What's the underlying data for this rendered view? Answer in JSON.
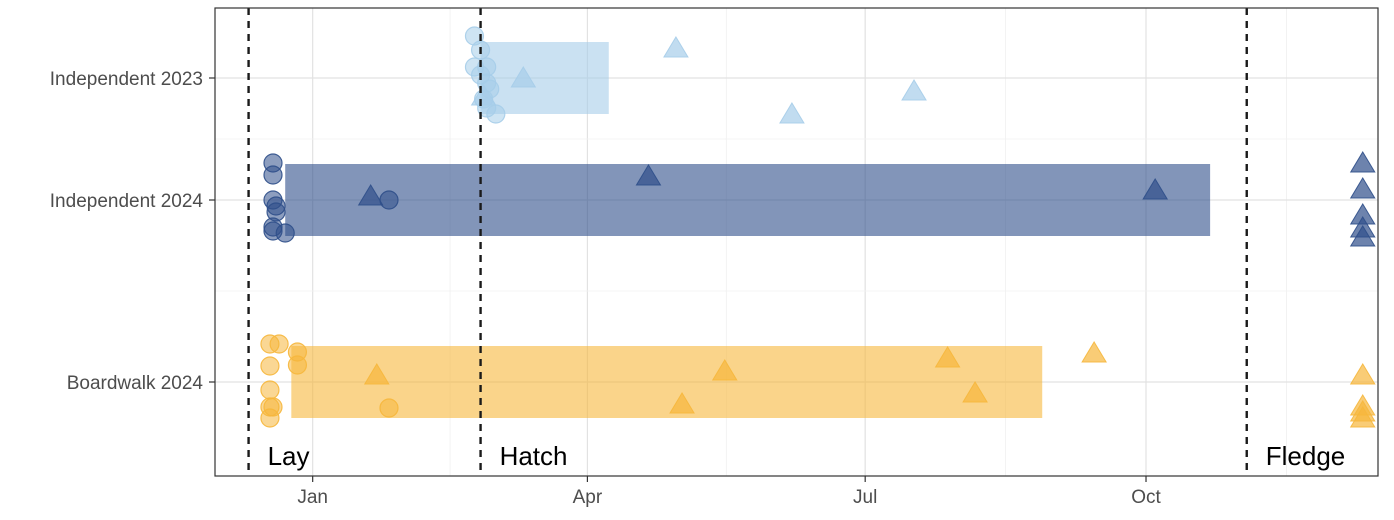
{
  "chart_data": {
    "type": "scatter",
    "title": "",
    "xlabel": "",
    "ylabel": "",
    "x_ticks": [
      {
        "label": "Jan",
        "x": 31
      },
      {
        "label": "Apr",
        "x": 121
      },
      {
        "label": "Jul",
        "x": 212
      },
      {
        "label": "Oct",
        "x": 304
      }
    ],
    "x_range": [
      -1,
      380
    ],
    "groups": [
      "Independent 2023",
      "Independent 2024",
      "Boardwalk 2024"
    ],
    "group_colors": {
      "Independent 2023": "#a6cde9",
      "Independent 2024": "#2f4f8a",
      "Boardwalk 2024": "#f6b73c"
    },
    "events": [
      {
        "label": "Lay",
        "x": 10
      },
      {
        "label": "Hatch",
        "x": 86
      },
      {
        "label": "Fledge",
        "x": 337
      }
    ],
    "ranges": [
      {
        "group": "Independent 2023",
        "start": 86,
        "end": 128
      },
      {
        "group": "Independent 2024",
        "start": 22,
        "end": 325
      },
      {
        "group": "Boardwalk 2024",
        "start": 24,
        "end": 270
      }
    ],
    "points": [
      {
        "group": "Independent 2023",
        "shape": "circle",
        "x": 84,
        "offset": 0.42
      },
      {
        "group": "Independent 2023",
        "shape": "circle",
        "x": 86,
        "offset": 0.28
      },
      {
        "group": "Independent 2023",
        "shape": "circle",
        "x": 84,
        "offset": 0.11
      },
      {
        "group": "Independent 2023",
        "shape": "circle",
        "x": 88,
        "offset": 0.11
      },
      {
        "group": "Independent 2023",
        "shape": "circle",
        "x": 86,
        "offset": 0.03
      },
      {
        "group": "Independent 2023",
        "shape": "circle",
        "x": 88,
        "offset": -0.05
      },
      {
        "group": "Independent 2023",
        "shape": "circle",
        "x": 89,
        "offset": -0.11
      },
      {
        "group": "Independent 2023",
        "shape": "circle",
        "x": 87,
        "offset": -0.21
      },
      {
        "group": "Independent 2023",
        "shape": "circle",
        "x": 88,
        "offset": -0.3
      },
      {
        "group": "Independent 2023",
        "shape": "circle",
        "x": 91,
        "offset": -0.36
      },
      {
        "group": "Independent 2023",
        "shape": "triangle",
        "x": 100,
        "offset": 0.0
      },
      {
        "group": "Independent 2023",
        "shape": "triangle",
        "x": 87,
        "offset": -0.18
      },
      {
        "group": "Independent 2023",
        "shape": "triangle",
        "x": 150,
        "offset": 0.3
      },
      {
        "group": "Independent 2023",
        "shape": "triangle",
        "x": 188,
        "offset": -0.36
      },
      {
        "group": "Independent 2023",
        "shape": "triangle",
        "x": 228,
        "offset": -0.13
      },
      {
        "group": "Independent 2024",
        "shape": "circle",
        "x": 18,
        "offset": 0.37
      },
      {
        "group": "Independent 2024",
        "shape": "circle",
        "x": 18,
        "offset": 0.25
      },
      {
        "group": "Independent 2024",
        "shape": "circle",
        "x": 18,
        "offset": 0.0
      },
      {
        "group": "Independent 2024",
        "shape": "circle",
        "x": 19,
        "offset": -0.06
      },
      {
        "group": "Independent 2024",
        "shape": "circle",
        "x": 19,
        "offset": -0.12
      },
      {
        "group": "Independent 2024",
        "shape": "circle",
        "x": 18,
        "offset": -0.27
      },
      {
        "group": "Independent 2024",
        "shape": "circle",
        "x": 18,
        "offset": -0.31
      },
      {
        "group": "Independent 2024",
        "shape": "circle",
        "x": 22,
        "offset": -0.33
      },
      {
        "group": "Independent 2024",
        "shape": "circle",
        "x": 56,
        "offset": 0.0
      },
      {
        "group": "Independent 2024",
        "shape": "triangle",
        "x": 50,
        "offset": 0.04
      },
      {
        "group": "Independent 2024",
        "shape": "triangle",
        "x": 141,
        "offset": 0.24
      },
      {
        "group": "Independent 2024",
        "shape": "triangle",
        "x": 307,
        "offset": 0.1
      },
      {
        "group": "Independent 2024",
        "shape": "triangle",
        "x": 375,
        "offset": 0.37
      },
      {
        "group": "Independent 2024",
        "shape": "triangle",
        "x": 375,
        "offset": 0.11
      },
      {
        "group": "Independent 2024",
        "shape": "triangle",
        "x": 375,
        "offset": -0.15
      },
      {
        "group": "Independent 2024",
        "shape": "triangle",
        "x": 375,
        "offset": -0.28
      },
      {
        "group": "Independent 2024",
        "shape": "triangle",
        "x": 375,
        "offset": -0.37
      },
      {
        "group": "Boardwalk 2024",
        "shape": "circle",
        "x": 17,
        "offset": 0.38
      },
      {
        "group": "Boardwalk 2024",
        "shape": "circle",
        "x": 20,
        "offset": 0.38
      },
      {
        "group": "Boardwalk 2024",
        "shape": "circle",
        "x": 26,
        "offset": 0.3
      },
      {
        "group": "Boardwalk 2024",
        "shape": "circle",
        "x": 17,
        "offset": 0.16
      },
      {
        "group": "Boardwalk 2024",
        "shape": "circle",
        "x": 26,
        "offset": 0.17
      },
      {
        "group": "Boardwalk 2024",
        "shape": "circle",
        "x": 17,
        "offset": -0.08
      },
      {
        "group": "Boardwalk 2024",
        "shape": "circle",
        "x": 17,
        "offset": -0.25
      },
      {
        "group": "Boardwalk 2024",
        "shape": "circle",
        "x": 18,
        "offset": -0.25
      },
      {
        "group": "Boardwalk 2024",
        "shape": "circle",
        "x": 17,
        "offset": -0.36
      },
      {
        "group": "Boardwalk 2024",
        "shape": "circle",
        "x": 56,
        "offset": -0.26
      },
      {
        "group": "Boardwalk 2024",
        "shape": "triangle",
        "x": 52,
        "offset": 0.07
      },
      {
        "group": "Boardwalk 2024",
        "shape": "triangle",
        "x": 166,
        "offset": 0.11
      },
      {
        "group": "Boardwalk 2024",
        "shape": "triangle",
        "x": 152,
        "offset": -0.22
      },
      {
        "group": "Boardwalk 2024",
        "shape": "triangle",
        "x": 239,
        "offset": 0.24
      },
      {
        "group": "Boardwalk 2024",
        "shape": "triangle",
        "x": 248,
        "offset": -0.11
      },
      {
        "group": "Boardwalk 2024",
        "shape": "triangle",
        "x": 287,
        "offset": 0.29
      },
      {
        "group": "Boardwalk 2024",
        "shape": "triangle",
        "x": 375,
        "offset": 0.07
      },
      {
        "group": "Boardwalk 2024",
        "shape": "triangle",
        "x": 375,
        "offset": -0.24
      },
      {
        "group": "Boardwalk 2024",
        "shape": "triangle",
        "x": 375,
        "offset": -0.3
      },
      {
        "group": "Boardwalk 2024",
        "shape": "triangle",
        "x": 375,
        "offset": -0.36
      }
    ],
    "grid": true,
    "legend": "none"
  }
}
